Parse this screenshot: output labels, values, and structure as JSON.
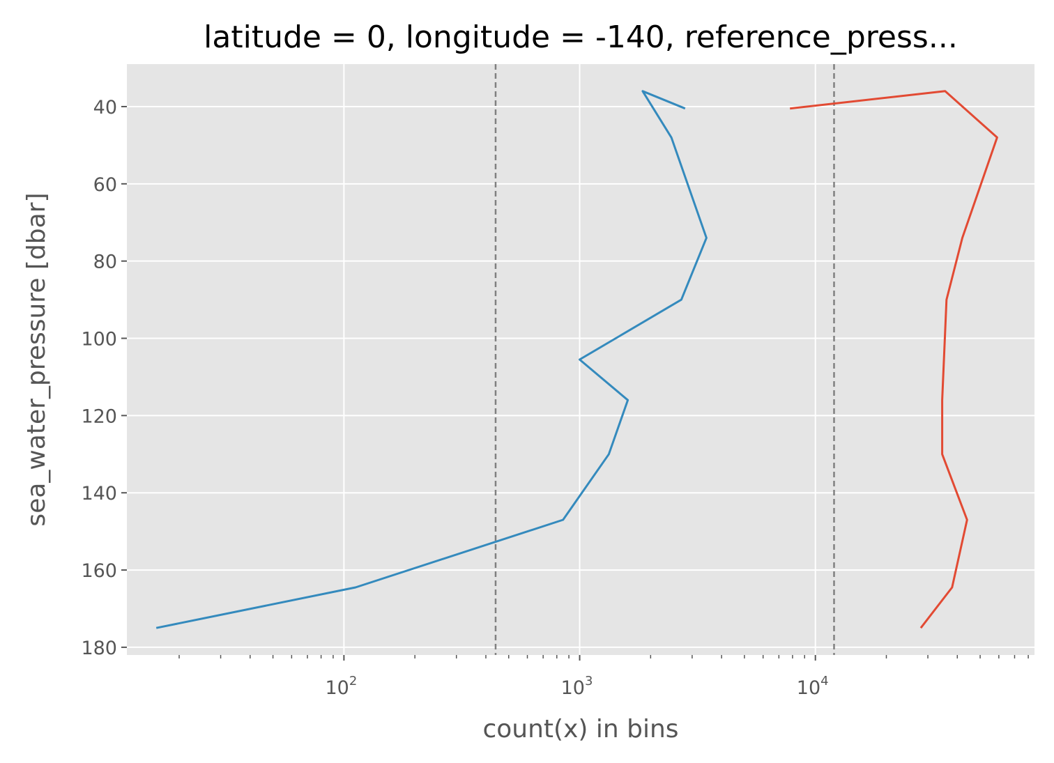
{
  "chart_data": {
    "type": "line",
    "title": "latitude = 0, longitude = -140, reference_press...",
    "xlabel": "count(x) in bins",
    "ylabel": "sea_water_pressure [dbar]",
    "x_scale": "log",
    "xlim": [
      12,
      85000
    ],
    "ylim": [
      182,
      29
    ],
    "y_inverted": true,
    "grid": true,
    "x_ticks": [
      {
        "base": "10",
        "exp": "2",
        "value": 100
      },
      {
        "base": "10",
        "exp": "3",
        "value": 1000
      },
      {
        "base": "10",
        "exp": "4",
        "value": 10000
      }
    ],
    "y_ticks": [
      {
        "label": "40",
        "value": 40
      },
      {
        "label": "60",
        "value": 60
      },
      {
        "label": "80",
        "value": 80
      },
      {
        "label": "100",
        "value": 100
      },
      {
        "label": "120",
        "value": 120
      },
      {
        "label": "140",
        "value": 140
      },
      {
        "label": "160",
        "value": 160
      },
      {
        "label": "180",
        "value": 180
      }
    ],
    "reference_lines": [
      440,
      12000
    ],
    "series": [
      {
        "color": "#348abd",
        "points": [
          {
            "x": 2800,
            "y": 40.5
          },
          {
            "x": 1850,
            "y": 36
          },
          {
            "x": 2450,
            "y": 48
          },
          {
            "x": 3450,
            "y": 74
          },
          {
            "x": 2700,
            "y": 90
          },
          {
            "x": 1000,
            "y": 105.5
          },
          {
            "x": 1600,
            "y": 116
          },
          {
            "x": 1330,
            "y": 130
          },
          {
            "x": 850,
            "y": 147
          },
          {
            "x": 112,
            "y": 164.5
          },
          {
            "x": 16,
            "y": 175
          }
        ]
      },
      {
        "color": "#e24a33",
        "points": [
          {
            "x": 7800,
            "y": 40.5
          },
          {
            "x": 35500,
            "y": 36
          },
          {
            "x": 59000,
            "y": 48
          },
          {
            "x": 42000,
            "y": 74
          },
          {
            "x": 36000,
            "y": 90
          },
          {
            "x": 34500,
            "y": 116
          },
          {
            "x": 34500,
            "y": 130
          },
          {
            "x": 44000,
            "y": 147
          },
          {
            "x": 38000,
            "y": 164.5
          },
          {
            "x": 28000,
            "y": 175
          }
        ]
      }
    ]
  }
}
